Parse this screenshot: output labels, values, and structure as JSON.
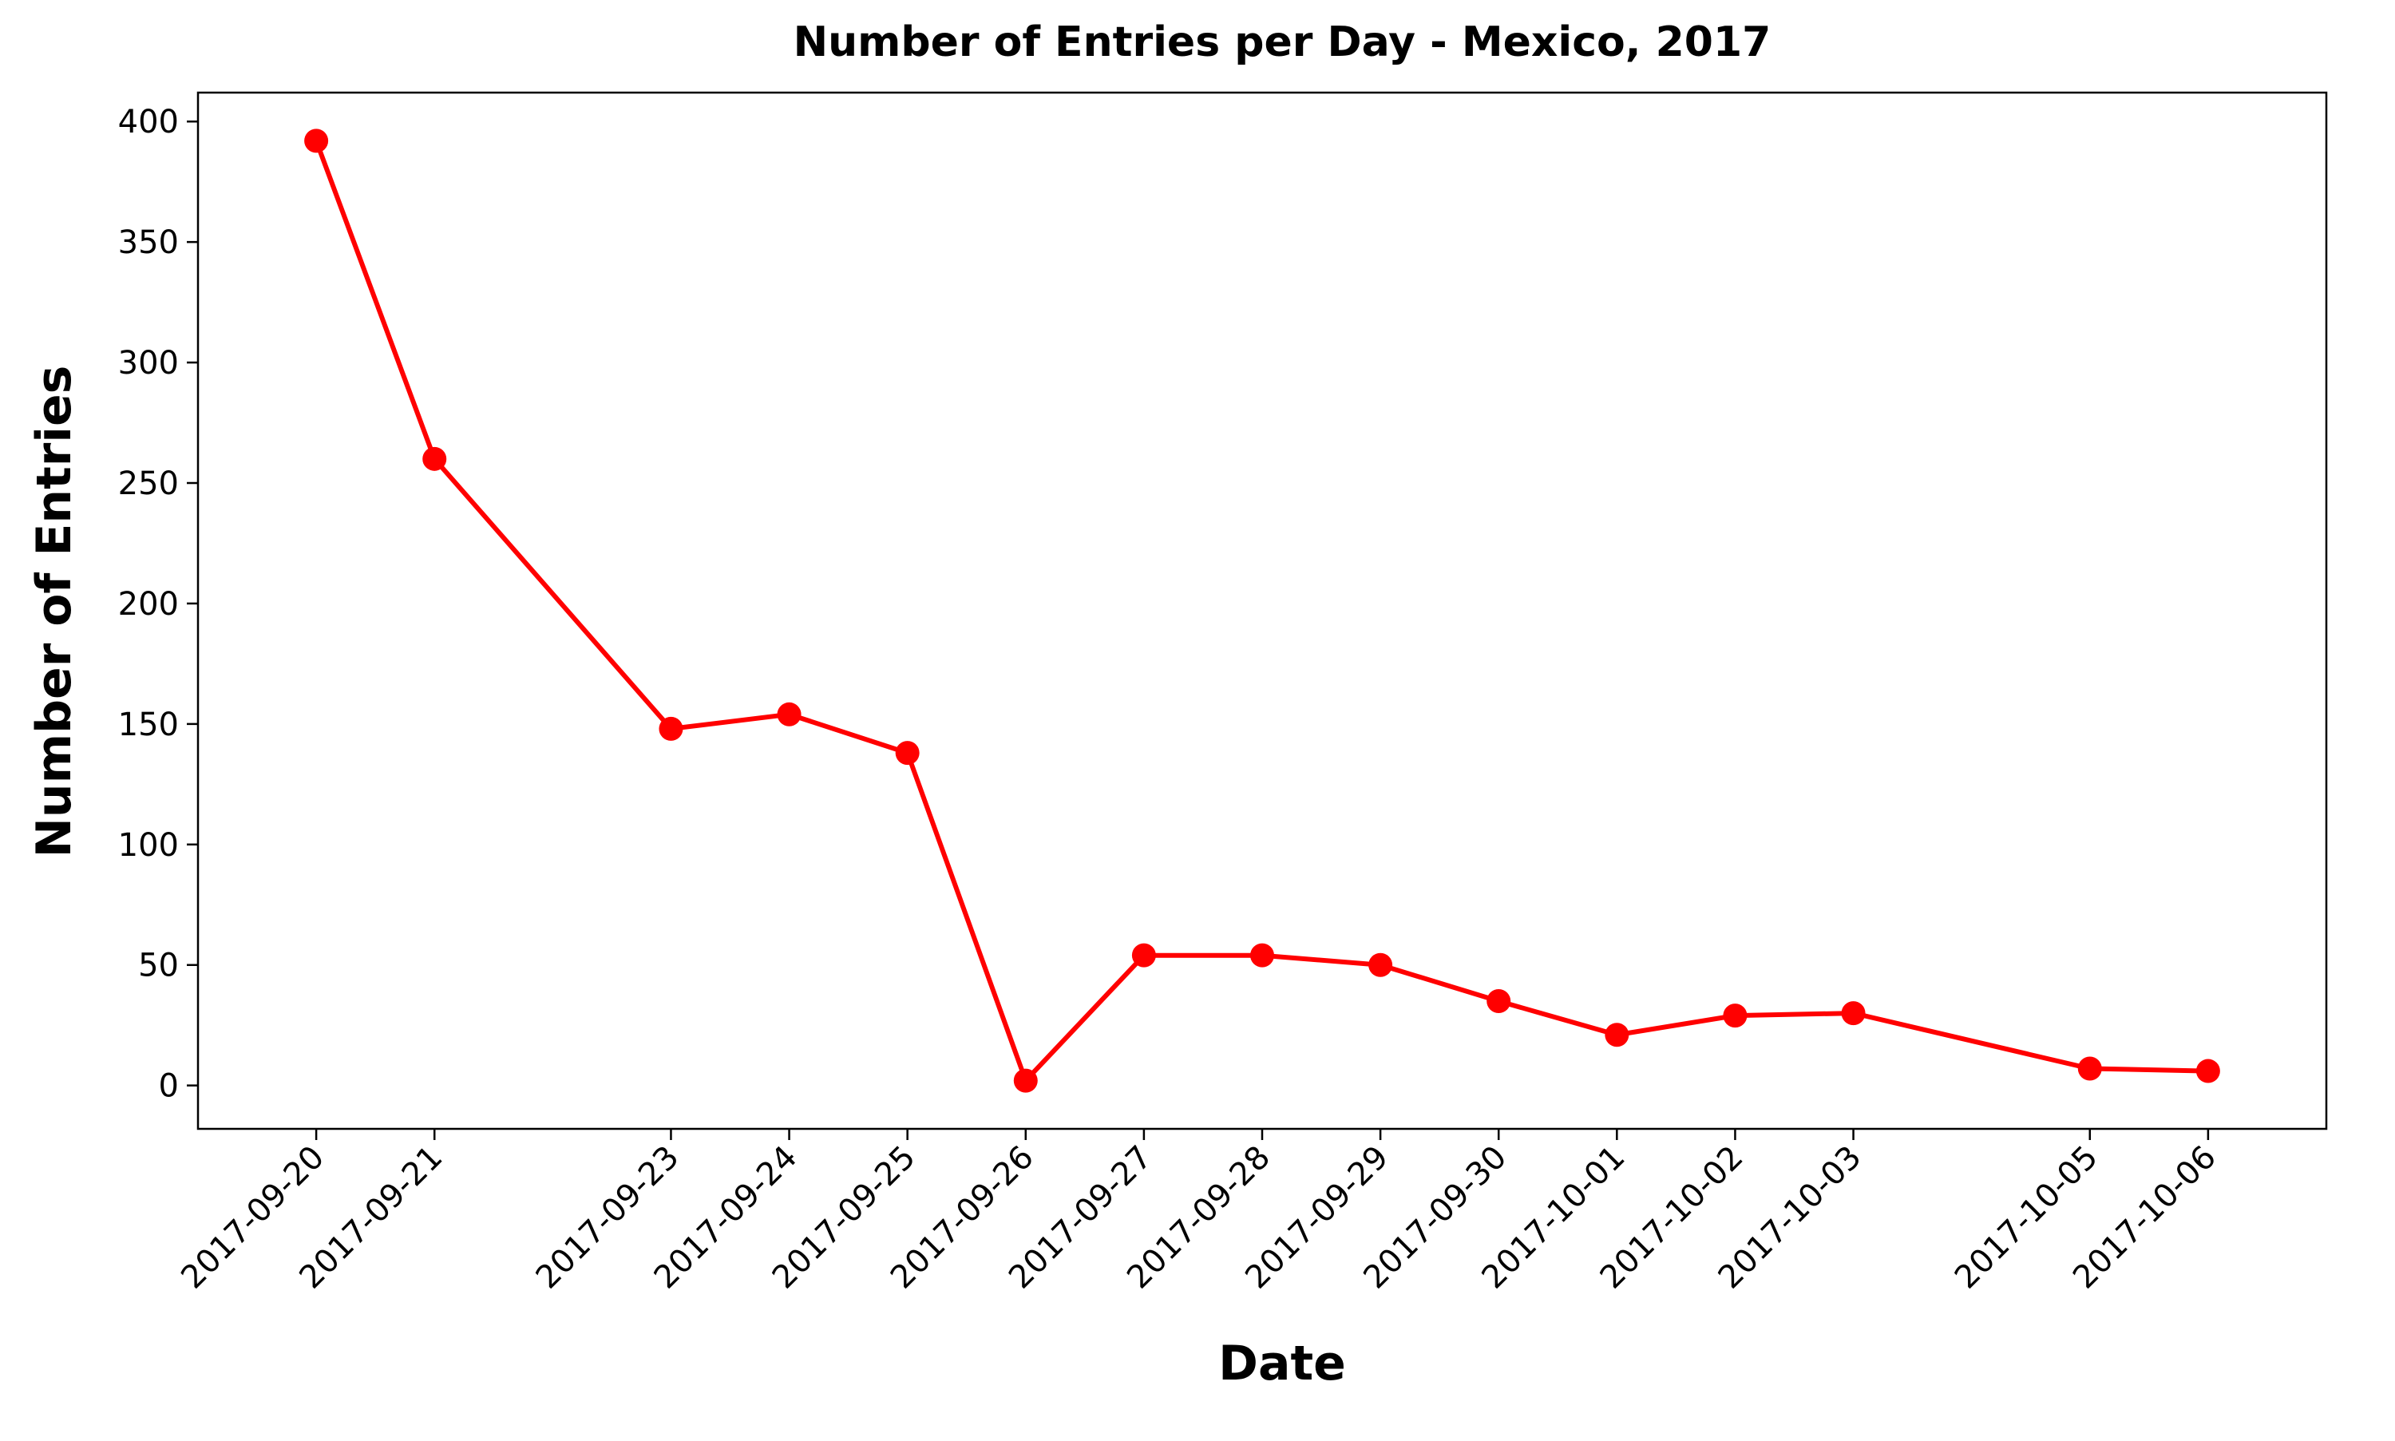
{
  "chart_data": {
    "type": "line",
    "title": "Number of Entries per Day - Mexico, 2017",
    "xlabel": "Date",
    "ylabel": "Number of Entries",
    "x": [
      "2017-09-20",
      "2017-09-21",
      "2017-09-23",
      "2017-09-24",
      "2017-09-25",
      "2017-09-26",
      "2017-09-27",
      "2017-09-28",
      "2017-09-29",
      "2017-09-30",
      "2017-10-01",
      "2017-10-02",
      "2017-10-03",
      "2017-10-05",
      "2017-10-06"
    ],
    "series": [
      {
        "values": [
          392,
          260,
          148,
          154,
          138,
          2,
          54,
          54,
          50,
          35,
          21,
          29,
          30,
          7,
          6
        ]
      }
    ],
    "ylim": [
      -18,
      412
    ],
    "yticks": [
      0,
      50,
      100,
      150,
      200,
      250,
      300,
      350,
      400
    ],
    "xlim": [
      "2017-09-19",
      "2017-10-07"
    ],
    "grid": false,
    "colors": {
      "line": "#ff0000",
      "marker": "#ff0000"
    }
  }
}
